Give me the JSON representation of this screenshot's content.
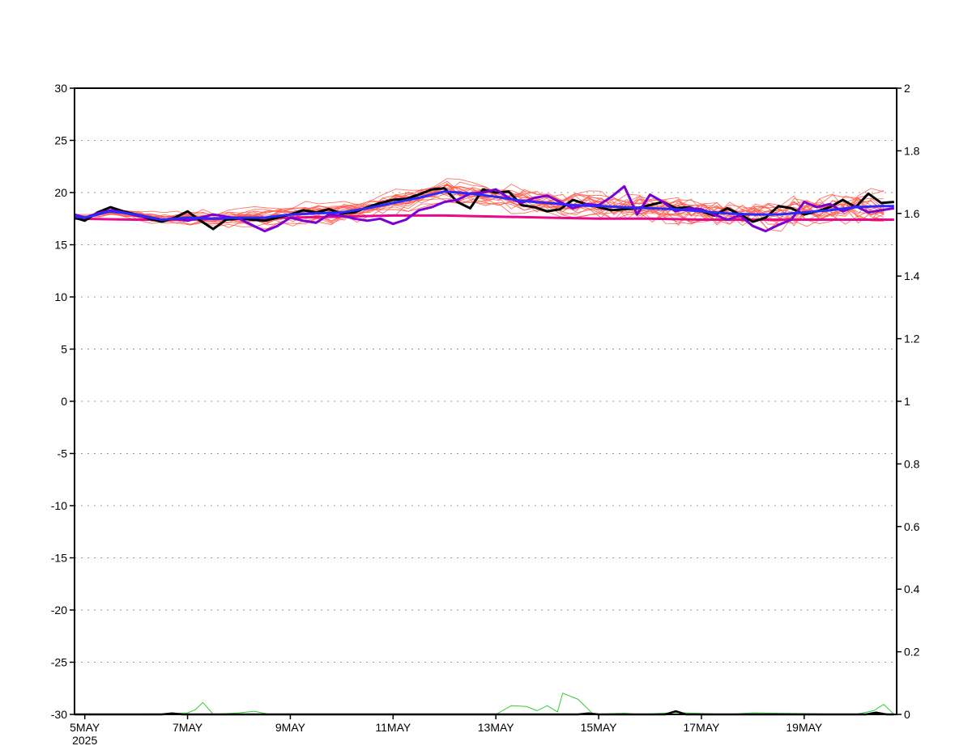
{
  "chart_data": {
    "type": "line",
    "title": "",
    "xlabel": "",
    "ylabel": "",
    "x_unit": "days after 5MAY2025 00Z",
    "xlim": [
      -0.2,
      15.8
    ],
    "x_ticks": [
      {
        "x": 0,
        "label": "5MAY",
        "sublabel": "2025"
      },
      {
        "x": 2,
        "label": "7MAY"
      },
      {
        "x": 4,
        "label": "9MAY"
      },
      {
        "x": 6,
        "label": "11MAY"
      },
      {
        "x": 8,
        "label": "13MAY"
      },
      {
        "x": 10,
        "label": "15MAY"
      },
      {
        "x": 12,
        "label": "17MAY"
      },
      {
        "x": 14,
        "label": "19MAY"
      }
    ],
    "y_left": {
      "ylim": [
        -30,
        30
      ],
      "ticks": [
        "30",
        "25",
        "20",
        "15",
        "10",
        "5",
        "0",
        "-5",
        "-10",
        "-15",
        "-20",
        "-25",
        "-30"
      ]
    },
    "y_right": {
      "ylim": [
        0,
        2
      ],
      "ticks": [
        "2",
        "1.8",
        "1.6",
        "1.4",
        "1.2",
        "1",
        "0.8",
        "0.6",
        "0.4",
        "0.2",
        "0"
      ]
    },
    "grid": "horizontal dotted",
    "colors": {
      "ensemble_members": "#ff5a4a",
      "control": "#000000",
      "ensemble_mean": "#2a2aff",
      "high_res": "#7a00d6",
      "climatology": "#e8088a",
      "precip_members": "#33cc33",
      "precip_control": "#000000"
    },
    "series": [
      {
        "role": "control",
        "axis": "left",
        "values": [
          [
            -0.2,
            17.6
          ],
          [
            0.0,
            17.3
          ],
          [
            0.25,
            18.1
          ],
          [
            0.5,
            18.6
          ],
          [
            0.75,
            18.2
          ],
          [
            1.0,
            17.9
          ],
          [
            1.25,
            17.5
          ],
          [
            1.5,
            17.2
          ],
          [
            1.75,
            17.6
          ],
          [
            2.0,
            18.2
          ],
          [
            2.25,
            17.3
          ],
          [
            2.5,
            16.5
          ],
          [
            2.75,
            17.4
          ],
          [
            3.0,
            17.5
          ],
          [
            3.25,
            17.4
          ],
          [
            3.5,
            17.3
          ],
          [
            3.75,
            17.6
          ],
          [
            4.0,
            17.9
          ],
          [
            4.25,
            18.3
          ],
          [
            4.5,
            18.1
          ],
          [
            4.75,
            18.4
          ],
          [
            5.0,
            18.0
          ],
          [
            5.25,
            18.1
          ],
          [
            5.5,
            18.6
          ],
          [
            5.75,
            19.0
          ],
          [
            6.0,
            19.3
          ],
          [
            6.25,
            19.4
          ],
          [
            6.5,
            19.8
          ],
          [
            6.75,
            20.3
          ],
          [
            7.0,
            20.4
          ],
          [
            7.25,
            19.1
          ],
          [
            7.5,
            18.5
          ],
          [
            7.75,
            20.3
          ],
          [
            8.0,
            20.0
          ],
          [
            8.25,
            20.1
          ],
          [
            8.5,
            18.8
          ],
          [
            8.75,
            18.6
          ],
          [
            9.0,
            18.2
          ],
          [
            9.25,
            18.4
          ],
          [
            9.5,
            19.3
          ],
          [
            9.75,
            18.9
          ],
          [
            10.0,
            18.6
          ],
          [
            10.25,
            18.3
          ],
          [
            10.5,
            18.4
          ],
          [
            10.75,
            18.5
          ],
          [
            11.0,
            18.8
          ],
          [
            11.25,
            19.1
          ],
          [
            11.5,
            18.5
          ],
          [
            11.75,
            18.6
          ],
          [
            12.0,
            18.2
          ],
          [
            12.25,
            17.8
          ],
          [
            12.5,
            18.5
          ],
          [
            12.75,
            17.9
          ],
          [
            13.0,
            17.2
          ],
          [
            13.25,
            17.6
          ],
          [
            13.5,
            18.7
          ],
          [
            13.75,
            18.5
          ],
          [
            14.0,
            17.9
          ],
          [
            14.25,
            18.2
          ],
          [
            14.5,
            18.6
          ],
          [
            14.75,
            19.3
          ],
          [
            15.0,
            18.6
          ],
          [
            15.25,
            19.9
          ],
          [
            15.5,
            19.0
          ],
          [
            15.75,
            19.1
          ]
        ]
      },
      {
        "role": "high_res",
        "axis": "left",
        "values": [
          [
            -0.2,
            17.9
          ],
          [
            0.0,
            17.6
          ],
          [
            0.25,
            18.0
          ],
          [
            0.5,
            18.3
          ],
          [
            0.75,
            18.1
          ],
          [
            1.0,
            17.8
          ],
          [
            1.25,
            17.6
          ],
          [
            1.5,
            17.4
          ],
          [
            1.75,
            17.5
          ],
          [
            2.0,
            17.3
          ],
          [
            2.25,
            17.6
          ],
          [
            2.5,
            17.9
          ],
          [
            2.75,
            17.7
          ],
          [
            3.0,
            17.5
          ],
          [
            3.25,
            16.9
          ],
          [
            3.5,
            16.3
          ],
          [
            3.75,
            16.8
          ],
          [
            4.0,
            17.6
          ],
          [
            4.25,
            17.3
          ],
          [
            4.5,
            17.1
          ],
          [
            4.75,
            17.9
          ],
          [
            5.0,
            17.8
          ],
          [
            5.25,
            17.5
          ],
          [
            5.5,
            17.3
          ],
          [
            5.75,
            17.5
          ],
          [
            6.0,
            17.0
          ],
          [
            6.25,
            17.4
          ],
          [
            6.5,
            18.3
          ],
          [
            6.75,
            18.6
          ],
          [
            7.0,
            19.1
          ],
          [
            7.25,
            19.3
          ],
          [
            7.5,
            19.9
          ],
          [
            7.75,
            20.0
          ],
          [
            8.0,
            20.3
          ],
          [
            8.25,
            19.5
          ],
          [
            8.5,
            19.0
          ],
          [
            8.75,
            19.5
          ],
          [
            9.0,
            19.7
          ],
          [
            9.25,
            19.1
          ],
          [
            9.5,
            18.5
          ],
          [
            9.75,
            18.9
          ],
          [
            10.0,
            18.8
          ],
          [
            10.25,
            19.6
          ],
          [
            10.5,
            20.6
          ],
          [
            10.75,
            17.9
          ],
          [
            11.0,
            19.8
          ],
          [
            11.25,
            19.1
          ],
          [
            11.5,
            18.2
          ],
          [
            11.75,
            18.5
          ],
          [
            12.0,
            18.4
          ],
          [
            12.25,
            17.9
          ],
          [
            12.5,
            17.4
          ],
          [
            12.75,
            17.8
          ],
          [
            13.0,
            16.8
          ],
          [
            13.25,
            16.3
          ],
          [
            13.5,
            16.9
          ],
          [
            13.75,
            17.4
          ],
          [
            14.0,
            19.1
          ],
          [
            14.25,
            18.6
          ],
          [
            14.5,
            18.9
          ],
          [
            14.75,
            18.2
          ],
          [
            15.0,
            18.7
          ],
          [
            15.25,
            18.1
          ],
          [
            15.5,
            18.3
          ],
          [
            15.75,
            18.5
          ]
        ]
      },
      {
        "role": "ensemble_mean",
        "axis": "left",
        "values": [
          [
            -0.2,
            17.7
          ],
          [
            0.0,
            17.6
          ],
          [
            0.5,
            18.2
          ],
          [
            1.0,
            17.9
          ],
          [
            1.5,
            17.4
          ],
          [
            2.0,
            17.6
          ],
          [
            2.5,
            17.5
          ],
          [
            3.0,
            17.6
          ],
          [
            3.5,
            17.6
          ],
          [
            4.0,
            17.9
          ],
          [
            4.5,
            18.0
          ],
          [
            5.0,
            18.1
          ],
          [
            5.5,
            18.5
          ],
          [
            6.0,
            19.0
          ],
          [
            6.5,
            19.5
          ],
          [
            7.0,
            20.1
          ],
          [
            7.5,
            19.9
          ],
          [
            8.0,
            19.6
          ],
          [
            8.5,
            19.2
          ],
          [
            9.0,
            19.0
          ],
          [
            9.5,
            18.8
          ],
          [
            10.0,
            18.7
          ],
          [
            10.5,
            18.6
          ],
          [
            11.0,
            18.5
          ],
          [
            11.5,
            18.4
          ],
          [
            12.0,
            18.2
          ],
          [
            12.5,
            18.0
          ],
          [
            13.0,
            17.9
          ],
          [
            13.5,
            17.9
          ],
          [
            14.0,
            18.1
          ],
          [
            14.5,
            18.3
          ],
          [
            15.0,
            18.6
          ],
          [
            15.5,
            18.7
          ],
          [
            15.75,
            18.7
          ]
        ]
      },
      {
        "role": "climatology",
        "axis": "left",
        "values": [
          [
            -0.2,
            17.5
          ],
          [
            1.0,
            17.4
          ],
          [
            2.0,
            17.4
          ],
          [
            3.0,
            17.5
          ],
          [
            4.0,
            17.6
          ],
          [
            5.0,
            17.7
          ],
          [
            6.0,
            17.8
          ],
          [
            7.0,
            17.8
          ],
          [
            8.0,
            17.7
          ],
          [
            9.0,
            17.6
          ],
          [
            10.0,
            17.5
          ],
          [
            11.0,
            17.5
          ],
          [
            12.0,
            17.4
          ],
          [
            13.0,
            17.4
          ],
          [
            14.0,
            17.4
          ],
          [
            15.0,
            17.4
          ],
          [
            15.75,
            17.4
          ]
        ]
      },
      {
        "role": "precip_members",
        "axis": "right",
        "values": [
          [
            0.0,
            0.0
          ],
          [
            1.5,
            0.002
          ],
          [
            2.0,
            0.005
          ],
          [
            2.15,
            0.015
          ],
          [
            2.3,
            0.038
          ],
          [
            2.5,
            0.0
          ],
          [
            3.0,
            0.005
          ],
          [
            3.3,
            0.01
          ],
          [
            3.6,
            0.0
          ],
          [
            8.0,
            0.0
          ],
          [
            8.3,
            0.028
          ],
          [
            8.6,
            0.025
          ],
          [
            8.8,
            0.012
          ],
          [
            9.0,
            0.028
          ],
          [
            9.2,
            0.008
          ],
          [
            9.3,
            0.068
          ],
          [
            9.6,
            0.048
          ],
          [
            9.9,
            0.0
          ],
          [
            10.5,
            0.004
          ],
          [
            10.8,
            0.0
          ],
          [
            11.5,
            0.006
          ],
          [
            12.5,
            0.0
          ],
          [
            13.0,
            0.005
          ],
          [
            15.0,
            0.0
          ],
          [
            15.35,
            0.012
          ],
          [
            15.55,
            0.032
          ],
          [
            15.75,
            0.0
          ]
        ]
      },
      {
        "role": "precip_control",
        "axis": "right",
        "values": [
          [
            -0.2,
            0.0
          ],
          [
            1.5,
            0.0
          ],
          [
            1.7,
            0.003
          ],
          [
            1.9,
            0.0
          ],
          [
            9.6,
            0.0
          ],
          [
            9.8,
            0.003
          ],
          [
            10.0,
            0.0
          ],
          [
            11.3,
            0.0
          ],
          [
            11.5,
            0.01
          ],
          [
            11.7,
            0.0
          ],
          [
            15.2,
            0.0
          ],
          [
            15.4,
            0.006
          ],
          [
            15.6,
            0.0
          ],
          [
            15.75,
            0.0
          ]
        ]
      }
    ],
    "ensemble": {
      "role": "ensemble_members",
      "axis": "left",
      "members": 20,
      "x_start": -0.2,
      "x_end": 15.75,
      "x_step": 0.25,
      "spread_note": "thin red member lines around the mean, roughly 15.5 to 21.5"
    }
  }
}
